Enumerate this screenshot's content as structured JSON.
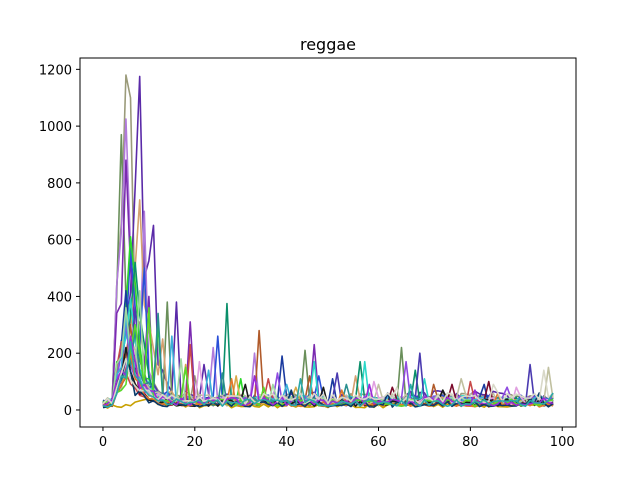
{
  "chart_data": {
    "type": "line",
    "title": "reggae",
    "xlabel": "",
    "ylabel": "",
    "xlim": [
      -5,
      103
    ],
    "ylim": [
      -60,
      1240
    ],
    "x_ticks": [
      0,
      20,
      40,
      60,
      80,
      100
    ],
    "y_ticks": [
      0,
      200,
      400,
      600,
      800,
      1000,
      1200
    ],
    "x_tick_labels": [
      "0",
      "20",
      "40",
      "60",
      "80",
      "100"
    ],
    "y_tick_labels": [
      "0",
      "200",
      "400",
      "600",
      "800",
      "1000",
      "1200"
    ],
    "grid": false,
    "legend": "none",
    "num_points": 99,
    "series": [
      {
        "name": "s1",
        "color": "#9b9b7a",
        "peak_x": 5,
        "peak": 1180,
        "base": 40,
        "spikes": [
          [
            6,
            1100
          ],
          [
            10,
            300
          ],
          [
            20,
            120
          ]
        ]
      },
      {
        "name": "s2",
        "color": "#5a2aa8",
        "peak_x": 8,
        "peak": 1175,
        "base": 45,
        "spikes": [
          [
            11,
            650
          ],
          [
            16,
            380
          ],
          [
            22,
            160
          ]
        ]
      },
      {
        "name": "s3",
        "color": "#6a8f5a",
        "peak_x": 4,
        "peak": 970,
        "base": 35,
        "spikes": [
          [
            14,
            380
          ],
          [
            44,
            210
          ],
          [
            65,
            220
          ]
        ]
      },
      {
        "name": "s4",
        "color": "#b07adb",
        "peak_x": 5,
        "peak": 1025,
        "base": 30,
        "spikes": [
          [
            9,
            700
          ],
          [
            24,
            220
          ],
          [
            33,
            200
          ]
        ]
      },
      {
        "name": "s5",
        "color": "#7a2ab0",
        "peak_x": 5,
        "peak": 880,
        "base": 30,
        "spikes": [
          [
            10,
            400
          ],
          [
            19,
            310
          ],
          [
            46,
            230
          ]
        ]
      },
      {
        "name": "s6",
        "color": "#d4a070",
        "peak_x": 8,
        "peak": 740,
        "base": 30,
        "spikes": [
          [
            7,
            500
          ],
          [
            13,
            250
          ],
          [
            55,
            120
          ]
        ]
      },
      {
        "name": "s7",
        "color": "#2a4fd8",
        "peak_x": 6,
        "peak": 570,
        "base": 35,
        "spikes": [
          [
            9,
            500
          ],
          [
            25,
            260
          ],
          [
            47,
            120
          ]
        ]
      },
      {
        "name": "s8",
        "color": "#2ad82a",
        "peak_x": 6,
        "peak": 610,
        "base": 25,
        "spikes": [
          [
            7,
            450
          ],
          [
            12,
            300
          ],
          [
            30,
            110
          ]
        ]
      },
      {
        "name": "s9",
        "color": "#0a8f6a",
        "peak_x": 7,
        "peak": 520,
        "base": 30,
        "spikes": [
          [
            27,
            375
          ],
          [
            56,
            170
          ],
          [
            68,
            140
          ]
        ]
      },
      {
        "name": "s10",
        "color": "#b05a2a",
        "peak_x": 6,
        "peak": 300,
        "base": 25,
        "spikes": [
          [
            34,
            280
          ],
          [
            45,
            120
          ],
          [
            72,
            90
          ]
        ]
      },
      {
        "name": "s11",
        "color": "#1a3a9f",
        "peak_x": 5,
        "peak": 420,
        "base": 30,
        "spikes": [
          [
            39,
            190
          ],
          [
            50,
            110
          ],
          [
            83,
            90
          ]
        ]
      },
      {
        "name": "s12",
        "color": "#2ad8c8",
        "peak_x": 6,
        "peak": 390,
        "base": 35,
        "spikes": [
          [
            46,
            170
          ],
          [
            57,
            170
          ],
          [
            70,
            110
          ]
        ]
      },
      {
        "name": "s13",
        "color": "#4a3ab0",
        "peak_x": 7,
        "peak": 360,
        "base": 30,
        "spikes": [
          [
            69,
            200
          ],
          [
            93,
            160
          ],
          [
            51,
            130
          ]
        ]
      },
      {
        "name": "s14",
        "color": "#8f4ae0",
        "peak_x": 5,
        "peak": 300,
        "base": 35,
        "spikes": [
          [
            66,
            170
          ],
          [
            38,
            130
          ],
          [
            88,
            80
          ]
        ]
      },
      {
        "name": "s15",
        "color": "#c0c0a0",
        "peak_x": 6,
        "peak": 260,
        "base": 40,
        "spikes": [
          [
            97,
            150
          ],
          [
            78,
            110
          ],
          [
            60,
            90
          ]
        ]
      },
      {
        "name": "s16",
        "color": "#d8a84a",
        "peak_x": 6,
        "peak": 230,
        "base": 25,
        "spikes": [
          [
            18,
            160
          ],
          [
            29,
            120
          ],
          [
            42,
            80
          ]
        ]
      },
      {
        "name": "s17",
        "color": "#c84a4a",
        "peak_x": 4,
        "peak": 240,
        "base": 25,
        "spikes": [
          [
            19,
            230
          ],
          [
            36,
            110
          ],
          [
            80,
            100
          ]
        ]
      },
      {
        "name": "s18",
        "color": "#3ab0d8",
        "peak_x": 5,
        "peak": 330,
        "base": 30,
        "spikes": [
          [
            15,
            260
          ],
          [
            23,
            140
          ],
          [
            40,
            90
          ]
        ]
      },
      {
        "name": "s19",
        "color": "#7a0a2a",
        "peak_x": 6,
        "peak": 200,
        "base": 25,
        "spikes": [
          [
            76,
            90
          ],
          [
            84,
            100
          ],
          [
            63,
            80
          ]
        ]
      },
      {
        "name": "s20",
        "color": "#2a8f8f",
        "peak_x": 7,
        "peak": 280,
        "base": 30,
        "spikes": [
          [
            12,
            340
          ],
          [
            26,
            130
          ],
          [
            53,
            90
          ]
        ]
      },
      {
        "name": "s21",
        "color": "#a0d8a0",
        "peak_x": 5,
        "peak": 360,
        "base": 30,
        "spikes": [
          [
            8,
            420
          ],
          [
            17,
            180
          ],
          [
            37,
            90
          ]
        ]
      },
      {
        "name": "s22",
        "color": "#e0a0e0",
        "peak_x": 6,
        "peak": 210,
        "base": 30,
        "spikes": [
          [
            21,
            170
          ],
          [
            59,
            100
          ],
          [
            90,
            80
          ]
        ]
      },
      {
        "name": "s23",
        "color": "#c8a000",
        "peak_x": 10,
        "peak": 40,
        "base": 15,
        "spikes": [
          [
            20,
            35
          ],
          [
            40,
            25
          ],
          [
            70,
            20
          ]
        ]
      },
      {
        "name": "s24",
        "color": "#1a1a1a",
        "peak_x": 5,
        "peak": 220,
        "base": 25,
        "spikes": [
          [
            31,
            90
          ],
          [
            48,
            80
          ],
          [
            74,
            70
          ]
        ]
      },
      {
        "name": "s25",
        "color": "#e07a2a",
        "peak_x": 6,
        "peak": 200,
        "base": 20,
        "spikes": [
          [
            28,
            110
          ],
          [
            52,
            70
          ],
          [
            86,
            60
          ]
        ]
      },
      {
        "name": "s26",
        "color": "#5ad82a",
        "peak_x": 7,
        "peak": 300,
        "base": 25,
        "spikes": [
          [
            10,
            360
          ],
          [
            18,
            150
          ],
          [
            35,
            80
          ]
        ]
      },
      {
        "name": "s27",
        "color": "#0a3a6a",
        "peak_x": 5,
        "peak": 180,
        "base": 20,
        "spikes": [
          [
            41,
            70
          ],
          [
            62,
            60
          ],
          [
            95,
            60
          ]
        ]
      },
      {
        "name": "s28",
        "color": "#9a2ad8",
        "peak_x": 6,
        "peak": 260,
        "base": 30,
        "spikes": [
          [
            33,
            120
          ],
          [
            58,
            90
          ],
          [
            81,
            70
          ]
        ]
      },
      {
        "name": "s29",
        "color": "#d8d8c8",
        "peak_x": 5,
        "peak": 180,
        "base": 40,
        "spikes": [
          [
            96,
            140
          ],
          [
            85,
            90
          ],
          [
            64,
            80
          ]
        ]
      },
      {
        "name": "s30",
        "color": "#2aa8a8",
        "peak_x": 6,
        "peak": 240,
        "base": 25,
        "spikes": [
          [
            43,
            110
          ],
          [
            67,
            90
          ],
          [
            98,
            60
          ]
        ]
      }
    ]
  }
}
